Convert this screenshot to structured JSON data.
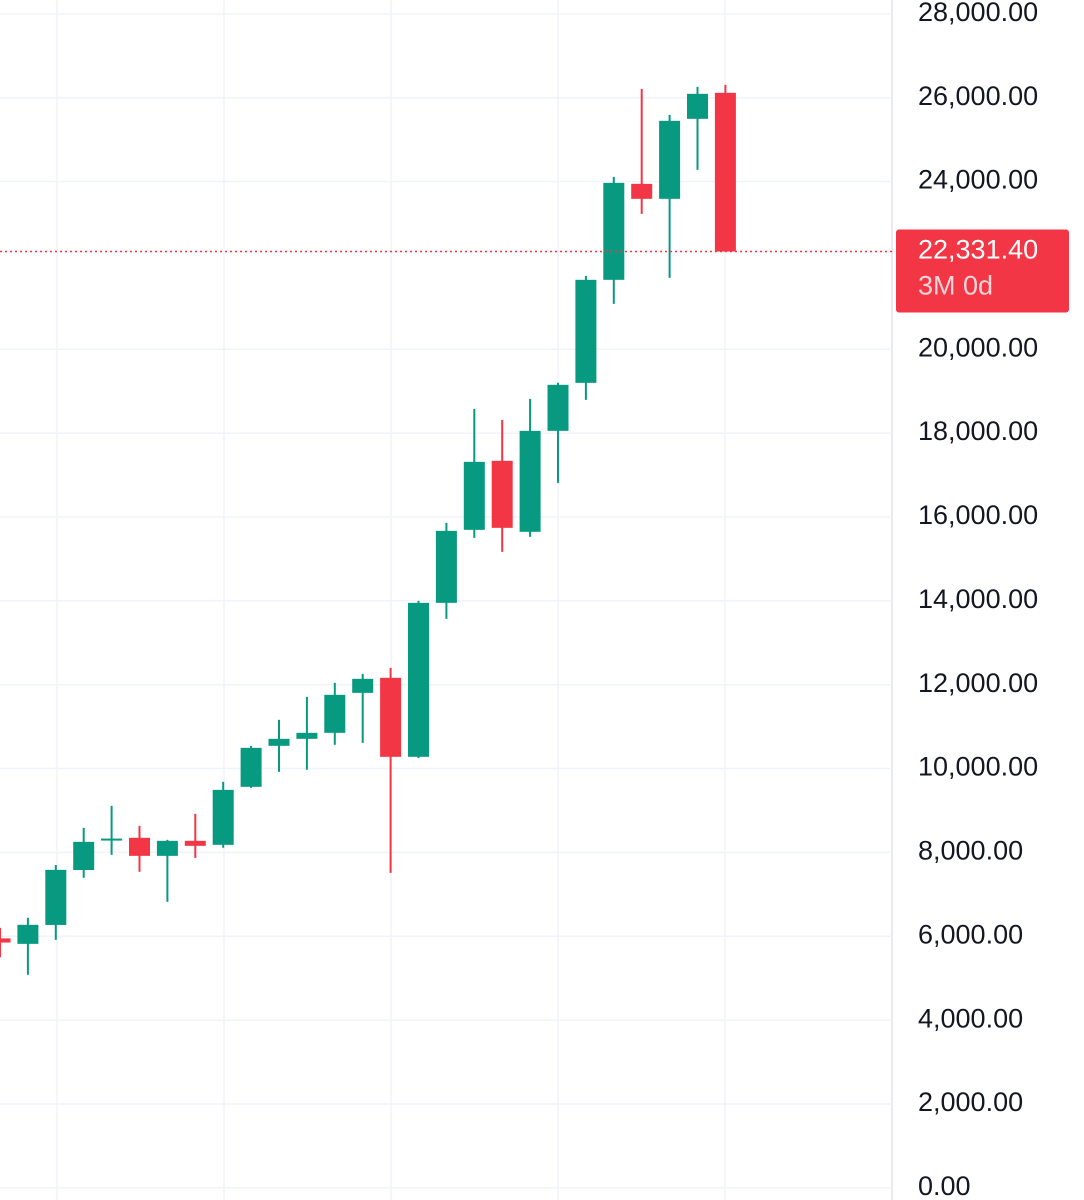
{
  "chart_data": {
    "type": "candlestick",
    "open": [
      5950,
      5819,
      6270,
      7580,
      8290,
      8348,
      7918,
      8276,
      8181,
      9564,
      10542,
      10709,
      10852,
      11805,
      12164,
      10280,
      13952,
      15693,
      17339,
      15646,
      18054,
      19199,
      21656,
      23945,
      23588,
      25496,
      26116
    ],
    "high": [
      6200,
      6440,
      7700,
      8586,
      9110,
      8634,
      8300,
      8920,
      9683,
      10540,
      11162,
      11710,
      12044,
      12259,
      12402,
      14000,
      15860,
      18579,
      18317,
      18818,
      19200,
      21751,
      24112,
      26211,
      25591,
      26259,
      26307
    ],
    "low": [
      5500,
      5080,
      5915,
      7394,
      7942,
      7537,
      6821,
      7870,
      8110,
      9540,
      9922,
      9970,
      10566,
      10613,
      7513,
      10250,
      13571,
      15503,
      15169,
      15526,
      16814,
      18794,
      21083,
      23230,
      21703,
      24279,
      22331.4
    ],
    "close": [
      5850,
      6273,
      7584,
      8252,
      8330,
      7918,
      8276,
      8157,
      9492,
      10494,
      10709,
      10852,
      11758,
      12140,
      10280,
      13952,
      15669,
      17315,
      15741,
      18054,
      19152,
      21656,
      23969,
      23588,
      25448,
      26092,
      22331.4
    ],
    "up_color": "#089981",
    "down_color": "#f23645",
    "ylim": [
      -290,
      28330
    ],
    "yticks": [
      {
        "value": 0,
        "label": "0.00"
      },
      {
        "value": 2000,
        "label": "2,000.00"
      },
      {
        "value": 4000,
        "label": "4,000.00"
      },
      {
        "value": 6000,
        "label": "6,000.00"
      },
      {
        "value": 8000,
        "label": "8,000.00"
      },
      {
        "value": 10000,
        "label": "10,000.00"
      },
      {
        "value": 12000,
        "label": "12,000.00"
      },
      {
        "value": 14000,
        "label": "14,000.00"
      },
      {
        "value": 16000,
        "label": "16,000.00"
      },
      {
        "value": 18000,
        "label": "18,000.00"
      },
      {
        "value": 20000,
        "label": "20,000.00"
      },
      {
        "value": 24000,
        "label": "24,000.00"
      },
      {
        "value": 26000,
        "label": "26,000.00"
      },
      {
        "value": 28000,
        "label": "28,000.00"
      }
    ],
    "grid": true,
    "last_price": {
      "value": 22331.4,
      "label": "22,331.40"
    },
    "countdown": "3M 0d"
  }
}
